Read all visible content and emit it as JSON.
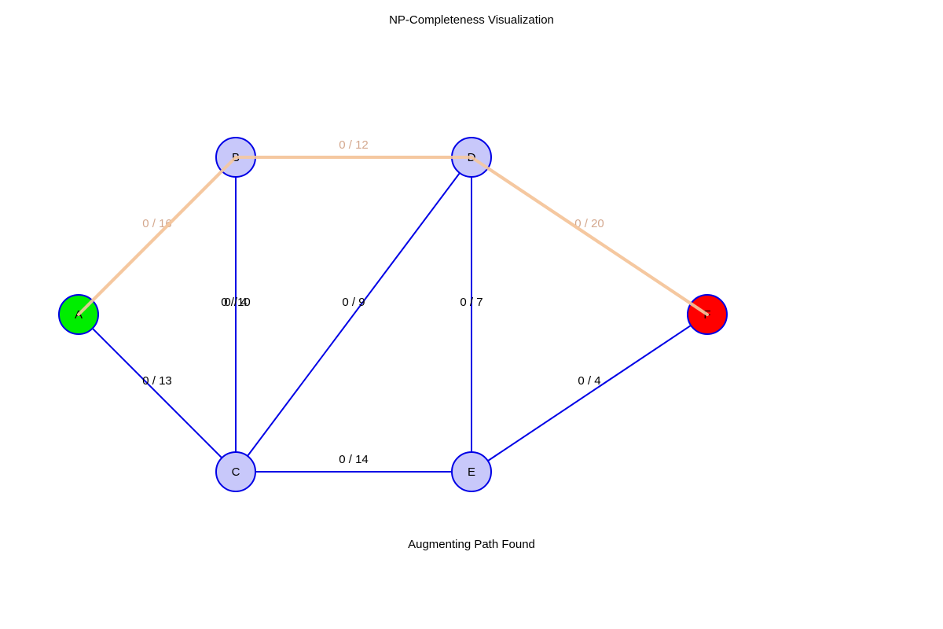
{
  "title": "NP-Completeness Visualization",
  "status": "Augmenting Path Found",
  "colors": {
    "edge": "#0000e6",
    "highlight": "#f5c8a0",
    "highlight_label": "#d4a88e",
    "node_default": "#c8c8fa",
    "node_source": "#00ee00",
    "node_sink": "#ff0000",
    "node_stroke": "#0000e6"
  },
  "graph": {
    "nodes": [
      {
        "id": "A",
        "label": "A",
        "role": "source"
      },
      {
        "id": "B",
        "label": "B",
        "role": "default"
      },
      {
        "id": "C",
        "label": "C",
        "role": "default"
      },
      {
        "id": "D",
        "label": "D",
        "role": "default"
      },
      {
        "id": "E",
        "label": "E",
        "role": "default"
      },
      {
        "id": "F",
        "label": "F",
        "role": "sink"
      }
    ],
    "edges": [
      {
        "from": "A",
        "to": "B",
        "label": "0 / 16",
        "on_path": true
      },
      {
        "from": "A",
        "to": "C",
        "label": "0 / 13",
        "on_path": false
      },
      {
        "from": "B",
        "to": "C",
        "label": "0 / 10",
        "on_path": false
      },
      {
        "from": "C",
        "to": "B",
        "label": "0 / 4",
        "on_path": false
      },
      {
        "from": "B",
        "to": "D",
        "label": "0 / 12",
        "on_path": true
      },
      {
        "from": "C",
        "to": "D",
        "label": "0 / 9",
        "on_path": false
      },
      {
        "from": "C",
        "to": "E",
        "label": "0 / 14",
        "on_path": false
      },
      {
        "from": "D",
        "to": "E",
        "label": "0 / 7",
        "on_path": false
      },
      {
        "from": "D",
        "to": "F",
        "label": "0 / 20",
        "on_path": true
      },
      {
        "from": "E",
        "to": "F",
        "label": "0 / 4",
        "on_path": false
      }
    ]
  }
}
